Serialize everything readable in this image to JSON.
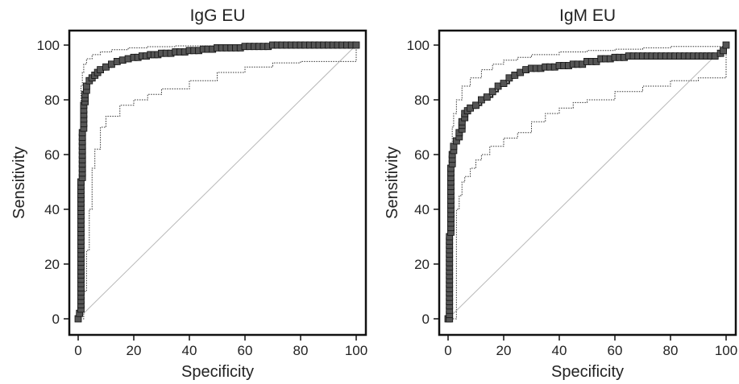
{
  "chart_data": [
    {
      "type": "line",
      "title": "IgG EU",
      "xlabel": "Specificity",
      "ylabel": "Sensitivity",
      "xlim": [
        0,
        100
      ],
      "ylim": [
        0,
        100
      ],
      "xticks": [
        "0",
        "20",
        "40",
        "60",
        "80",
        "100"
      ],
      "yticks": [
        "0",
        "20",
        "40",
        "60",
        "80",
        "100"
      ],
      "grid": false,
      "series": [
        {
          "role": "roc",
          "x": [
            0,
            0.5,
            1,
            1,
            1.5,
            2,
            2.5,
            3,
            4,
            5,
            6,
            7,
            8,
            10,
            12,
            14,
            16,
            18,
            20,
            23,
            26,
            30,
            35,
            40,
            45,
            50,
            60,
            70,
            80,
            90,
            100
          ],
          "y": [
            0,
            2,
            30,
            50,
            68,
            78,
            82,
            85,
            87,
            88,
            89,
            90,
            91,
            92,
            93,
            94,
            94.5,
            95,
            95.5,
            96,
            96.5,
            97,
            97.5,
            98,
            98.5,
            99,
            99.5,
            100,
            100,
            100,
            100
          ]
        },
        {
          "role": "ci-upper",
          "x": [
            0,
            0.5,
            1,
            1.5,
            2,
            3,
            5,
            8,
            12,
            18,
            25,
            35,
            50,
            70,
            100
          ],
          "y": [
            2,
            60,
            85,
            90,
            93,
            95,
            96.5,
            97.5,
            98.3,
            99,
            99.4,
            99.7,
            99.9,
            100,
            100
          ]
        },
        {
          "role": "ci-lower",
          "x": [
            0,
            2,
            3,
            4,
            5,
            6,
            8,
            10,
            15,
            20,
            25,
            30,
            40,
            50,
            60,
            70,
            80,
            90,
            98,
            100
          ],
          "y": [
            0,
            10,
            25,
            40,
            55,
            62,
            70,
            74,
            78,
            80,
            82,
            84,
            87,
            90,
            92,
            93.5,
            94,
            94,
            94,
            100
          ]
        },
        {
          "role": "reference",
          "x": [
            0,
            100
          ],
          "y": [
            0,
            100
          ]
        }
      ]
    },
    {
      "type": "line",
      "title": "IgM EU",
      "xlabel": "Specificity",
      "ylabel": "Sensitivity",
      "xlim": [
        0,
        100
      ],
      "ylim": [
        0,
        100
      ],
      "xticks": [
        "0",
        "20",
        "40",
        "60",
        "80",
        "100"
      ],
      "yticks": [
        "0",
        "20",
        "40",
        "60",
        "80",
        "100"
      ],
      "grid": false,
      "series": [
        {
          "role": "roc",
          "x": [
            0,
            0.5,
            0.5,
            1,
            1,
            1.5,
            2,
            3,
            4,
            5,
            6,
            7,
            8,
            10,
            12,
            14,
            16,
            18,
            20,
            22,
            24,
            26,
            28,
            30,
            35,
            40,
            45,
            50,
            55,
            60,
            65,
            70,
            80,
            90,
            96,
            98,
            99,
            100
          ],
          "y": [
            0,
            0,
            30,
            45,
            55,
            60,
            63,
            65,
            68,
            72,
            75,
            76,
            77,
            78,
            80,
            81,
            83,
            85,
            86,
            88,
            89,
            90,
            91,
            91.5,
            92,
            92.5,
            93,
            94,
            95,
            95.5,
            96,
            96,
            96,
            96,
            96,
            97,
            98,
            100
          ]
        },
        {
          "role": "ci-upper",
          "x": [
            0,
            0.5,
            1,
            1.5,
            2,
            3,
            5,
            8,
            12,
            16,
            20,
            25,
            30,
            40,
            50,
            60,
            70,
            80,
            90,
            100
          ],
          "y": [
            0,
            40,
            60,
            70,
            75,
            80,
            85,
            88,
            91,
            93,
            94.5,
            95.5,
            96.5,
            97.5,
            98,
            98.5,
            99,
            99.5,
            99.5,
            100
          ]
        },
        {
          "role": "ci-lower",
          "x": [
            0,
            1.5,
            2.5,
            3,
            4,
            5,
            6,
            8,
            10,
            12,
            15,
            20,
            25,
            30,
            35,
            40,
            45,
            50,
            60,
            70,
            80,
            90,
            95,
            98,
            100
          ],
          "y": [
            0,
            0,
            0,
            40,
            45,
            50,
            52,
            55,
            58,
            60,
            63,
            66,
            68,
            72,
            75,
            77,
            79,
            80,
            83,
            85,
            87,
            88,
            88,
            88,
            100
          ]
        },
        {
          "role": "reference",
          "x": [
            0,
            100
          ],
          "y": [
            0,
            100
          ]
        }
      ]
    }
  ]
}
